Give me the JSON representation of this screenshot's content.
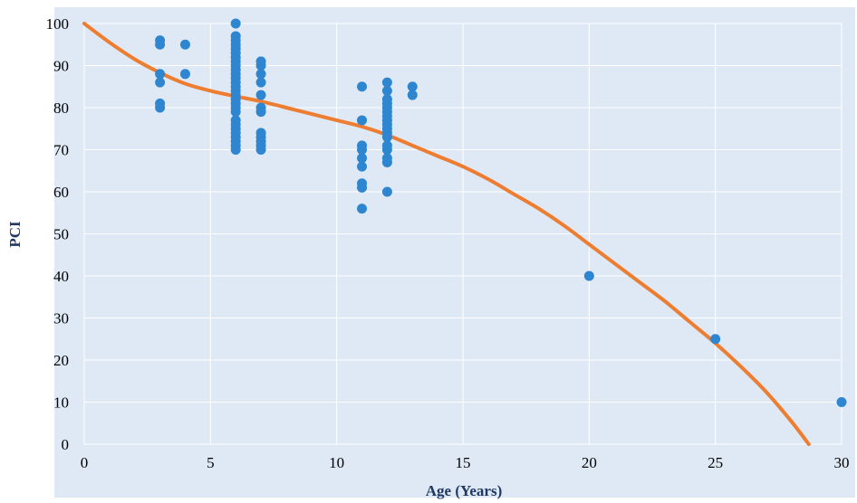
{
  "colors": {
    "plot_background": "#dfe9f5",
    "gridline": "#ffffff",
    "points": "#2e86d1",
    "trendline": "#ed7d31",
    "axis_title": "#1f3864"
  },
  "chart_data": {
    "type": "scatter",
    "xlabel": "Age (Years)",
    "ylabel": "PCI",
    "xlim": [
      0,
      30
    ],
    "ylim": [
      0,
      100
    ],
    "x_ticks": [
      0,
      5,
      10,
      15,
      20,
      25,
      30
    ],
    "y_ticks": [
      0,
      10,
      20,
      30,
      40,
      50,
      60,
      70,
      80,
      90,
      100
    ],
    "x_tick_labels": [
      "0",
      "5",
      "10",
      "15",
      "20",
      "25",
      "30"
    ],
    "y_tick_labels": [
      "0",
      "10",
      "20",
      "30",
      "40",
      "50",
      "60",
      "70",
      "80",
      "90",
      "100"
    ],
    "grid": true,
    "legend": "none",
    "points": [
      {
        "x": 3,
        "y": 96
      },
      {
        "x": 3,
        "y": 95
      },
      {
        "x": 3,
        "y": 88
      },
      {
        "x": 3,
        "y": 86
      },
      {
        "x": 3,
        "y": 81
      },
      {
        "x": 3,
        "y": 80
      },
      {
        "x": 4,
        "y": 95
      },
      {
        "x": 4,
        "y": 88
      },
      {
        "x": 6,
        "y": 100
      },
      {
        "x": 6,
        "y": 97
      },
      {
        "x": 6,
        "y": 96
      },
      {
        "x": 6,
        "y": 95
      },
      {
        "x": 6,
        "y": 94
      },
      {
        "x": 6,
        "y": 93
      },
      {
        "x": 6,
        "y": 92
      },
      {
        "x": 6,
        "y": 91
      },
      {
        "x": 6,
        "y": 90
      },
      {
        "x": 6,
        "y": 89
      },
      {
        "x": 6,
        "y": 88
      },
      {
        "x": 6,
        "y": 87
      },
      {
        "x": 6,
        "y": 86
      },
      {
        "x": 6,
        "y": 85
      },
      {
        "x": 6,
        "y": 84
      },
      {
        "x": 6,
        "y": 83
      },
      {
        "x": 6,
        "y": 82
      },
      {
        "x": 6,
        "y": 81
      },
      {
        "x": 6,
        "y": 80
      },
      {
        "x": 6,
        "y": 79
      },
      {
        "x": 6,
        "y": 77
      },
      {
        "x": 6,
        "y": 76
      },
      {
        "x": 6,
        "y": 75
      },
      {
        "x": 6,
        "y": 74
      },
      {
        "x": 6,
        "y": 73
      },
      {
        "x": 6,
        "y": 72
      },
      {
        "x": 6,
        "y": 71
      },
      {
        "x": 6,
        "y": 70
      },
      {
        "x": 7,
        "y": 91
      },
      {
        "x": 7,
        "y": 90
      },
      {
        "x": 7,
        "y": 88
      },
      {
        "x": 7,
        "y": 86
      },
      {
        "x": 7,
        "y": 83
      },
      {
        "x": 7,
        "y": 80
      },
      {
        "x": 7,
        "y": 79
      },
      {
        "x": 7,
        "y": 74
      },
      {
        "x": 7,
        "y": 73
      },
      {
        "x": 7,
        "y": 72
      },
      {
        "x": 7,
        "y": 71
      },
      {
        "x": 7,
        "y": 70
      },
      {
        "x": 11,
        "y": 85
      },
      {
        "x": 11,
        "y": 77
      },
      {
        "x": 11,
        "y": 71
      },
      {
        "x": 11,
        "y": 70
      },
      {
        "x": 11,
        "y": 68
      },
      {
        "x": 11,
        "y": 66
      },
      {
        "x": 11,
        "y": 62
      },
      {
        "x": 11,
        "y": 61
      },
      {
        "x": 11,
        "y": 56
      },
      {
        "x": 12,
        "y": 86
      },
      {
        "x": 12,
        "y": 84
      },
      {
        "x": 12,
        "y": 82
      },
      {
        "x": 12,
        "y": 81
      },
      {
        "x": 12,
        "y": 80
      },
      {
        "x": 12,
        "y": 79
      },
      {
        "x": 12,
        "y": 78
      },
      {
        "x": 12,
        "y": 77
      },
      {
        "x": 12,
        "y": 76
      },
      {
        "x": 12,
        "y": 75
      },
      {
        "x": 12,
        "y": 74
      },
      {
        "x": 12,
        "y": 73
      },
      {
        "x": 12,
        "y": 71
      },
      {
        "x": 12,
        "y": 70
      },
      {
        "x": 12,
        "y": 68
      },
      {
        "x": 12,
        "y": 67
      },
      {
        "x": 12,
        "y": 60
      },
      {
        "x": 13,
        "y": 85
      },
      {
        "x": 13,
        "y": 83
      },
      {
        "x": 20,
        "y": 40
      },
      {
        "x": 25,
        "y": 25
      },
      {
        "x": 30,
        "y": 10
      }
    ],
    "trendline": {
      "type": "polynomial",
      "points": [
        {
          "x": 0,
          "y": 100
        },
        {
          "x": 1,
          "y": 95.5
        },
        {
          "x": 2,
          "y": 91.5
        },
        {
          "x": 3,
          "y": 88.3
        },
        {
          "x": 4,
          "y": 85.7
        },
        {
          "x": 5,
          "y": 84
        },
        {
          "x": 6,
          "y": 82.7
        },
        {
          "x": 7,
          "y": 81.5
        },
        {
          "x": 8,
          "y": 80
        },
        {
          "x": 9,
          "y": 78.5
        },
        {
          "x": 10,
          "y": 77
        },
        {
          "x": 11,
          "y": 75.5
        },
        {
          "x": 12,
          "y": 73.5
        },
        {
          "x": 13,
          "y": 71
        },
        {
          "x": 14,
          "y": 68.5
        },
        {
          "x": 15,
          "y": 66
        },
        {
          "x": 16,
          "y": 63
        },
        {
          "x": 17,
          "y": 59.5
        },
        {
          "x": 18,
          "y": 56
        },
        {
          "x": 19,
          "y": 52
        },
        {
          "x": 20,
          "y": 47.5
        },
        {
          "x": 21,
          "y": 43
        },
        {
          "x": 22,
          "y": 38.5
        },
        {
          "x": 23,
          "y": 34
        },
        {
          "x": 24,
          "y": 29
        },
        {
          "x": 25,
          "y": 24
        },
        {
          "x": 26,
          "y": 18.5
        },
        {
          "x": 27,
          "y": 12.5
        },
        {
          "x": 28,
          "y": 5.5
        },
        {
          "x": 28.7,
          "y": 0
        }
      ]
    }
  }
}
